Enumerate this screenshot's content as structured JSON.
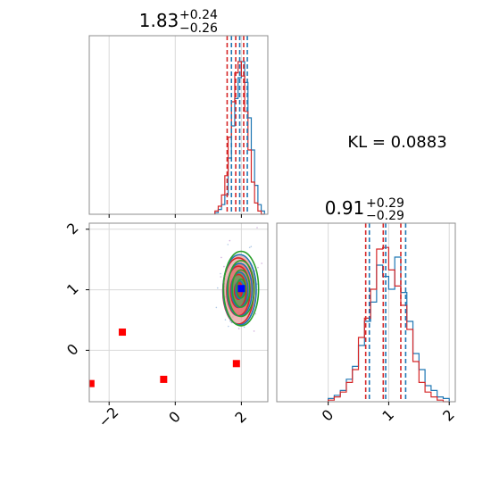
{
  "chart_data": [
    {
      "type": "histogram",
      "panel": "top-left",
      "title_value": "1.83",
      "title_plus": "+0.24",
      "title_minus": "−0.26",
      "x_range": [
        -2.6,
        2.8
      ],
      "x_ticks": [
        -2,
        0,
        2
      ],
      "series": [
        {
          "color": "#1f77b4",
          "bins": [
            1.2,
            1.3,
            1.4,
            1.5,
            1.6,
            1.7,
            1.8,
            1.9,
            2.0,
            2.1,
            2.2,
            2.3,
            2.4,
            2.5,
            2.6
          ],
          "counts": [
            0.01,
            0.03,
            0.06,
            0.12,
            0.35,
            0.55,
            0.72,
            0.85,
            0.95,
            0.82,
            0.6,
            0.4,
            0.18,
            0.06,
            0.02
          ]
        },
        {
          "color": "#d62728",
          "bins": [
            1.2,
            1.3,
            1.4,
            1.5,
            1.6,
            1.7,
            1.8,
            1.9,
            2.0,
            2.1,
            2.2,
            2.3,
            2.4,
            2.5,
            2.6
          ],
          "counts": [
            0.02,
            0.05,
            0.12,
            0.24,
            0.48,
            0.7,
            0.88,
            0.95,
            0.86,
            0.64,
            0.4,
            0.2,
            0.07,
            0.02,
            0.0
          ]
        }
      ],
      "quantile_lines": [
        {
          "color": "#d62728",
          "x": [
            1.57,
            1.83,
            2.07
          ]
        },
        {
          "color": "#1f77b4",
          "x": [
            1.7,
            1.95,
            2.18
          ]
        }
      ]
    },
    {
      "type": "scatter",
      "panel": "bottom-left",
      "x_range": [
        -2.6,
        2.8
      ],
      "y_range": [
        -0.85,
        2.1
      ],
      "x_ticks": [
        -2,
        0,
        2
      ],
      "y_ticks": [
        0,
        1,
        2
      ],
      "outliers": [
        {
          "x": -2.55,
          "y": -0.55
        },
        {
          "x": -1.6,
          "y": 0.3
        },
        {
          "x": -0.35,
          "y": -0.48
        },
        {
          "x": 1.85,
          "y": -0.22
        }
      ],
      "outlier_color": "#ff0000",
      "truth_point": {
        "x": 2.0,
        "y": 1.02,
        "color": "#0000ff"
      },
      "contours": {
        "center_x": 1.95,
        "center_y": 1.0,
        "sigma_x": 0.25,
        "sigma_y": 0.29,
        "colors": [
          "#d62728",
          "#1f77b4",
          "#2ca02c"
        ]
      }
    },
    {
      "type": "histogram",
      "panel": "bottom-right",
      "title_value": "0.91",
      "title_plus": "+0.29",
      "title_minus": "−0.29",
      "x_range": [
        -0.85,
        2.1
      ],
      "x_ticks": [
        0,
        1,
        2
      ],
      "series": [
        {
          "color": "#1f77b4",
          "bins": [
            0.0,
            0.1,
            0.2,
            0.3,
            0.4,
            0.5,
            0.6,
            0.7,
            0.8,
            0.9,
            1.0,
            1.1,
            1.2,
            1.3,
            1.4,
            1.5,
            1.6,
            1.7,
            1.8,
            1.9
          ],
          "counts": [
            0.02,
            0.04,
            0.07,
            0.14,
            0.22,
            0.35,
            0.5,
            0.62,
            0.85,
            0.78,
            0.7,
            0.9,
            0.68,
            0.5,
            0.3,
            0.2,
            0.1,
            0.07,
            0.03,
            0.02
          ]
        },
        {
          "color": "#d62728",
          "bins": [
            0.0,
            0.1,
            0.2,
            0.3,
            0.4,
            0.5,
            0.6,
            0.7,
            0.8,
            0.9,
            1.0,
            1.1,
            1.2,
            1.3,
            1.4,
            1.5,
            1.6,
            1.7,
            1.8,
            1.9
          ],
          "counts": [
            0.01,
            0.03,
            0.06,
            0.12,
            0.2,
            0.4,
            0.52,
            0.7,
            0.95,
            0.96,
            0.82,
            0.72,
            0.6,
            0.45,
            0.25,
            0.12,
            0.06,
            0.03,
            0.01,
            0.0
          ]
        }
      ],
      "quantile_lines": [
        {
          "color": "#d62728",
          "x": [
            0.62,
            0.91,
            1.2
          ]
        },
        {
          "color": "#1f77b4",
          "x": [
            0.68,
            0.95,
            1.28
          ]
        }
      ]
    }
  ],
  "kl_text": "KL = 0.0883"
}
